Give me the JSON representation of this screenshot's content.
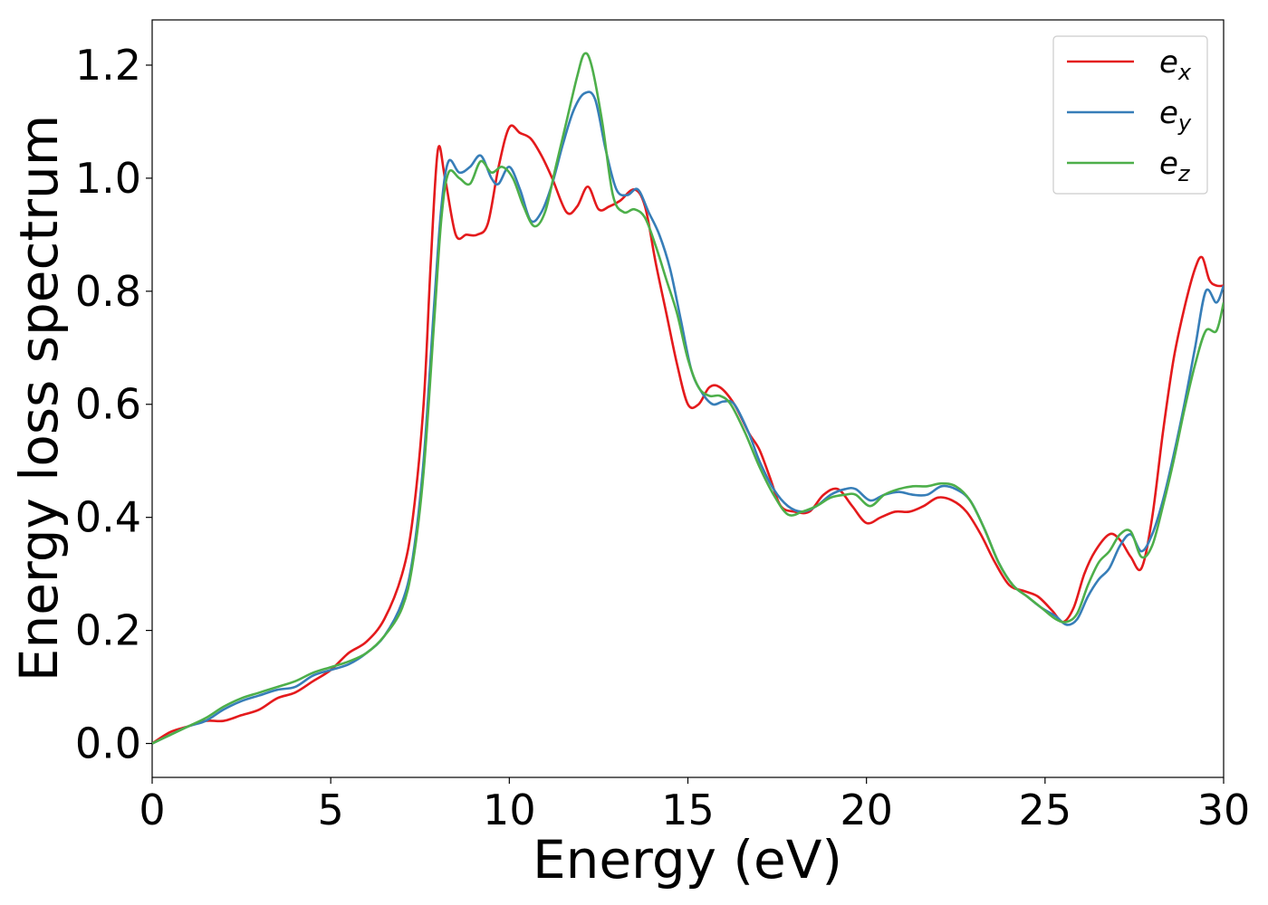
{
  "chart_data": {
    "type": "line",
    "title": "",
    "xlabel": "Energy (eV)",
    "ylabel": "Energy loss spectrum",
    "xlim": [
      0,
      30
    ],
    "ylim": [
      -0.06,
      1.28
    ],
    "xticks": [
      0,
      5,
      10,
      15,
      20,
      25,
      30
    ],
    "xtick_labels": [
      "0",
      "5",
      "10",
      "15",
      "20",
      "25",
      "30"
    ],
    "yticks": [
      0.0,
      0.2,
      0.4,
      0.6,
      0.8,
      1.0,
      1.2
    ],
    "ytick_labels": [
      "0.0",
      "0.2",
      "0.4",
      "0.6",
      "0.8",
      "1.0",
      "1.2"
    ],
    "grid": false,
    "legend_position": "top-right",
    "series": [
      {
        "name": "e_x",
        "label_base": "e",
        "label_sub": "x",
        "color": "#e41a1c",
        "x": [
          0,
          0.5,
          1,
          1.5,
          2,
          2.5,
          3,
          3.5,
          4,
          4.5,
          5,
          5.5,
          6,
          6.5,
          7,
          7.3,
          7.6,
          7.8,
          8.0,
          8.2,
          8.5,
          8.8,
          9.1,
          9.4,
          9.7,
          10.0,
          10.3,
          10.6,
          10.9,
          11.2,
          11.6,
          11.9,
          12.2,
          12.5,
          12.8,
          13.1,
          13.5,
          13.8,
          14.1,
          14.4,
          14.7,
          15.0,
          15.3,
          15.6,
          15.9,
          16.3,
          16.7,
          17.0,
          17.3,
          17.6,
          18.0,
          18.4,
          18.8,
          19.2,
          19.6,
          20.0,
          20.4,
          20.8,
          21.2,
          21.6,
          22.0,
          22.4,
          22.8,
          23.2,
          23.6,
          24.0,
          24.4,
          24.8,
          25.2,
          25.5,
          25.8,
          26.1,
          26.4,
          26.8,
          27.1,
          27.4,
          27.7,
          28.0,
          28.3,
          28.6,
          28.9,
          29.2,
          29.4,
          29.6,
          29.8,
          30.0
        ],
        "y": [
          0.0,
          0.02,
          0.03,
          0.04,
          0.04,
          0.05,
          0.06,
          0.08,
          0.09,
          0.11,
          0.13,
          0.16,
          0.18,
          0.22,
          0.3,
          0.4,
          0.6,
          0.85,
          1.05,
          1.0,
          0.9,
          0.9,
          0.9,
          0.92,
          1.02,
          1.09,
          1.08,
          1.07,
          1.04,
          1.0,
          0.94,
          0.95,
          0.985,
          0.945,
          0.95,
          0.96,
          0.98,
          0.95,
          0.85,
          0.76,
          0.67,
          0.6,
          0.6,
          0.63,
          0.63,
          0.6,
          0.55,
          0.52,
          0.47,
          0.42,
          0.41,
          0.41,
          0.44,
          0.45,
          0.42,
          0.39,
          0.4,
          0.41,
          0.41,
          0.42,
          0.435,
          0.43,
          0.41,
          0.37,
          0.32,
          0.28,
          0.27,
          0.26,
          0.235,
          0.215,
          0.24,
          0.3,
          0.34,
          0.37,
          0.36,
          0.33,
          0.31,
          0.4,
          0.55,
          0.68,
          0.77,
          0.84,
          0.86,
          0.82,
          0.81,
          0.81
        ]
      },
      {
        "name": "e_y",
        "label_base": "e",
        "label_sub": "y",
        "color": "#377eb8",
        "x": [
          0,
          0.5,
          1,
          1.5,
          2,
          2.5,
          3,
          3.5,
          4,
          4.5,
          5,
          5.5,
          6,
          6.5,
          7,
          7.3,
          7.6,
          7.9,
          8.1,
          8.3,
          8.6,
          8.9,
          9.2,
          9.5,
          9.7,
          10.0,
          10.3,
          10.6,
          10.9,
          11.2,
          11.5,
          11.8,
          12.1,
          12.4,
          12.7,
          13.0,
          13.3,
          13.6,
          13.9,
          14.2,
          14.5,
          14.8,
          15.1,
          15.4,
          15.7,
          16.0,
          16.3,
          16.7,
          17.0,
          17.4,
          17.8,
          18.2,
          18.6,
          19.0,
          19.4,
          19.7,
          20.1,
          20.5,
          20.9,
          21.3,
          21.7,
          22.1,
          22.5,
          22.9,
          23.3,
          23.7,
          24.1,
          24.5,
          24.9,
          25.3,
          25.6,
          25.9,
          26.2,
          26.5,
          26.8,
          27.1,
          27.4,
          27.7,
          28.0,
          28.3,
          28.6,
          28.9,
          29.2,
          29.5,
          29.8,
          30.0
        ],
        "y": [
          0.0,
          0.015,
          0.03,
          0.04,
          0.06,
          0.075,
          0.085,
          0.095,
          0.1,
          0.12,
          0.13,
          0.14,
          0.16,
          0.19,
          0.25,
          0.33,
          0.5,
          0.78,
          0.95,
          1.03,
          1.01,
          1.02,
          1.04,
          1.0,
          0.99,
          1.02,
          0.98,
          0.925,
          0.94,
          0.99,
          1.06,
          1.12,
          1.15,
          1.14,
          1.05,
          0.98,
          0.97,
          0.98,
          0.94,
          0.9,
          0.84,
          0.75,
          0.66,
          0.62,
          0.6,
          0.605,
          0.6,
          0.55,
          0.5,
          0.45,
          0.42,
          0.41,
          0.42,
          0.44,
          0.45,
          0.45,
          0.43,
          0.44,
          0.445,
          0.44,
          0.44,
          0.455,
          0.45,
          0.43,
          0.38,
          0.32,
          0.28,
          0.26,
          0.24,
          0.225,
          0.21,
          0.22,
          0.26,
          0.29,
          0.31,
          0.35,
          0.37,
          0.34,
          0.37,
          0.43,
          0.51,
          0.6,
          0.7,
          0.8,
          0.78,
          0.81
        ]
      },
      {
        "name": "e_z",
        "label_base": "e",
        "label_sub": "z",
        "color": "#4daf4a",
        "x": [
          0,
          0.5,
          1,
          1.5,
          2,
          2.5,
          3,
          3.5,
          4,
          4.5,
          5,
          5.5,
          6,
          6.5,
          7,
          7.3,
          7.6,
          7.9,
          8.1,
          8.3,
          8.6,
          8.9,
          9.2,
          9.5,
          9.8,
          10.1,
          10.4,
          10.7,
          11.0,
          11.3,
          11.6,
          11.9,
          12.1,
          12.3,
          12.6,
          12.9,
          13.2,
          13.5,
          13.8,
          14.1,
          14.4,
          14.7,
          15.0,
          15.3,
          15.6,
          15.9,
          16.2,
          16.6,
          17.0,
          17.4,
          17.8,
          18.2,
          18.6,
          19.0,
          19.4,
          19.7,
          20.1,
          20.5,
          20.9,
          21.3,
          21.7,
          22.1,
          22.5,
          22.9,
          23.3,
          23.7,
          24.1,
          24.5,
          24.9,
          25.3,
          25.6,
          25.9,
          26.2,
          26.5,
          26.8,
          27.1,
          27.4,
          27.7,
          28.0,
          28.3,
          28.6,
          28.9,
          29.2,
          29.5,
          29.8,
          30.0
        ],
        "y": [
          0.0,
          0.015,
          0.03,
          0.045,
          0.065,
          0.08,
          0.09,
          0.1,
          0.11,
          0.125,
          0.135,
          0.145,
          0.16,
          0.19,
          0.24,
          0.32,
          0.48,
          0.75,
          0.93,
          1.01,
          1.0,
          0.99,
          1.03,
          1.01,
          1.02,
          1.0,
          0.95,
          0.915,
          0.94,
          1.02,
          1.1,
          1.18,
          1.22,
          1.2,
          1.1,
          0.97,
          0.94,
          0.945,
          0.93,
          0.88,
          0.82,
          0.76,
          0.68,
          0.63,
          0.615,
          0.615,
          0.6,
          0.55,
          0.49,
          0.44,
          0.405,
          0.41,
          0.42,
          0.435,
          0.44,
          0.44,
          0.42,
          0.44,
          0.45,
          0.455,
          0.455,
          0.46,
          0.455,
          0.43,
          0.38,
          0.32,
          0.28,
          0.26,
          0.24,
          0.22,
          0.215,
          0.23,
          0.28,
          0.32,
          0.34,
          0.37,
          0.375,
          0.33,
          0.35,
          0.42,
          0.5,
          0.59,
          0.67,
          0.73,
          0.73,
          0.78
        ]
      }
    ]
  }
}
